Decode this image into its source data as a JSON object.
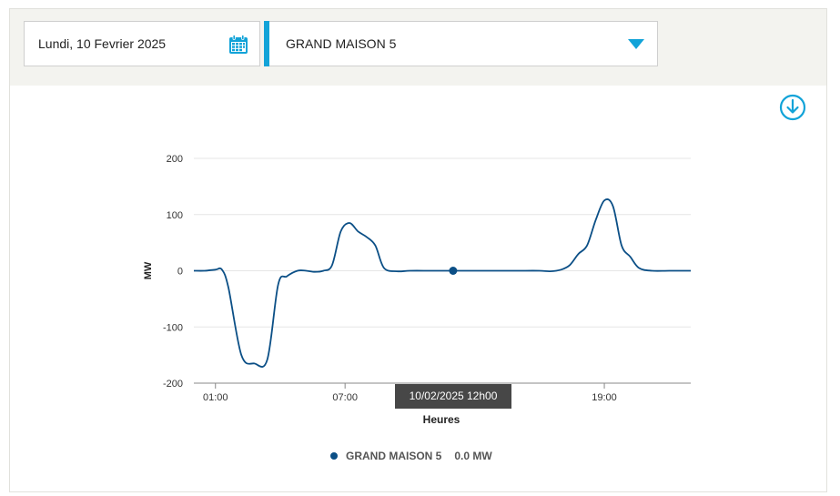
{
  "toolbar": {
    "date_value": "Lundi, 10 Fevrier 2025",
    "site_selected": "GRAND MAISON 5"
  },
  "icons": {
    "calendar": "calendar-icon",
    "dropdown": "caret-down-icon",
    "download": "download-icon"
  },
  "colors": {
    "accent": "#12a3d8",
    "series": "#0b4f86",
    "tooltip_bg": "#474747"
  },
  "chart_data": {
    "type": "line",
    "title": "",
    "xlabel": "Heures",
    "ylabel": "MW",
    "ylim": [
      -200,
      200
    ],
    "xlim": [
      0,
      23
    ],
    "x_ticks": [
      {
        "x": 1,
        "label": "01:00"
      },
      {
        "x": 7,
        "label": "07:00"
      },
      {
        "x": 19,
        "label": "19:00"
      }
    ],
    "y_ticks": [
      {
        "y": 200,
        "label": "200"
      },
      {
        "y": 100,
        "label": "100"
      },
      {
        "y": 0,
        "label": "0"
      },
      {
        "y": -100,
        "label": "-100"
      },
      {
        "y": -200,
        "label": "-200"
      }
    ],
    "grid": true,
    "legend_position": "bottom-center",
    "series": [
      {
        "name": "GRAND MAISON 5",
        "color": "#0b4f86",
        "x": [
          0,
          0.5,
          1,
          1.3,
          1.6,
          2.2,
          2.8,
          3.4,
          3.9,
          4.3,
          4.8,
          5.2,
          5.6,
          6.0,
          6.4,
          6.8,
          7.2,
          7.6,
          8.0,
          8.4,
          8.8,
          9.4,
          10,
          11,
          12,
          13,
          14,
          15,
          16,
          16.5,
          17.0,
          17.4,
          17.8,
          18.2,
          18.6,
          19.0,
          19.4,
          19.8,
          20.2,
          20.6,
          21.2,
          22,
          23
        ],
        "y": [
          0,
          0,
          2,
          2,
          -30,
          -150,
          -165,
          -158,
          -25,
          -10,
          0,
          0,
          -2,
          0,
          10,
          70,
          85,
          70,
          60,
          45,
          5,
          -1,
          0,
          0,
          0,
          0,
          0,
          0,
          0,
          -1,
          2,
          10,
          30,
          45,
          90,
          125,
          115,
          45,
          25,
          5,
          0,
          0,
          0
        ]
      }
    ],
    "tooltip": {
      "x": 12,
      "y": 0,
      "label": "10/02/2025 12h00"
    },
    "legend": [
      {
        "name": "GRAND MAISON 5",
        "value": "0.0 MW"
      }
    ]
  }
}
